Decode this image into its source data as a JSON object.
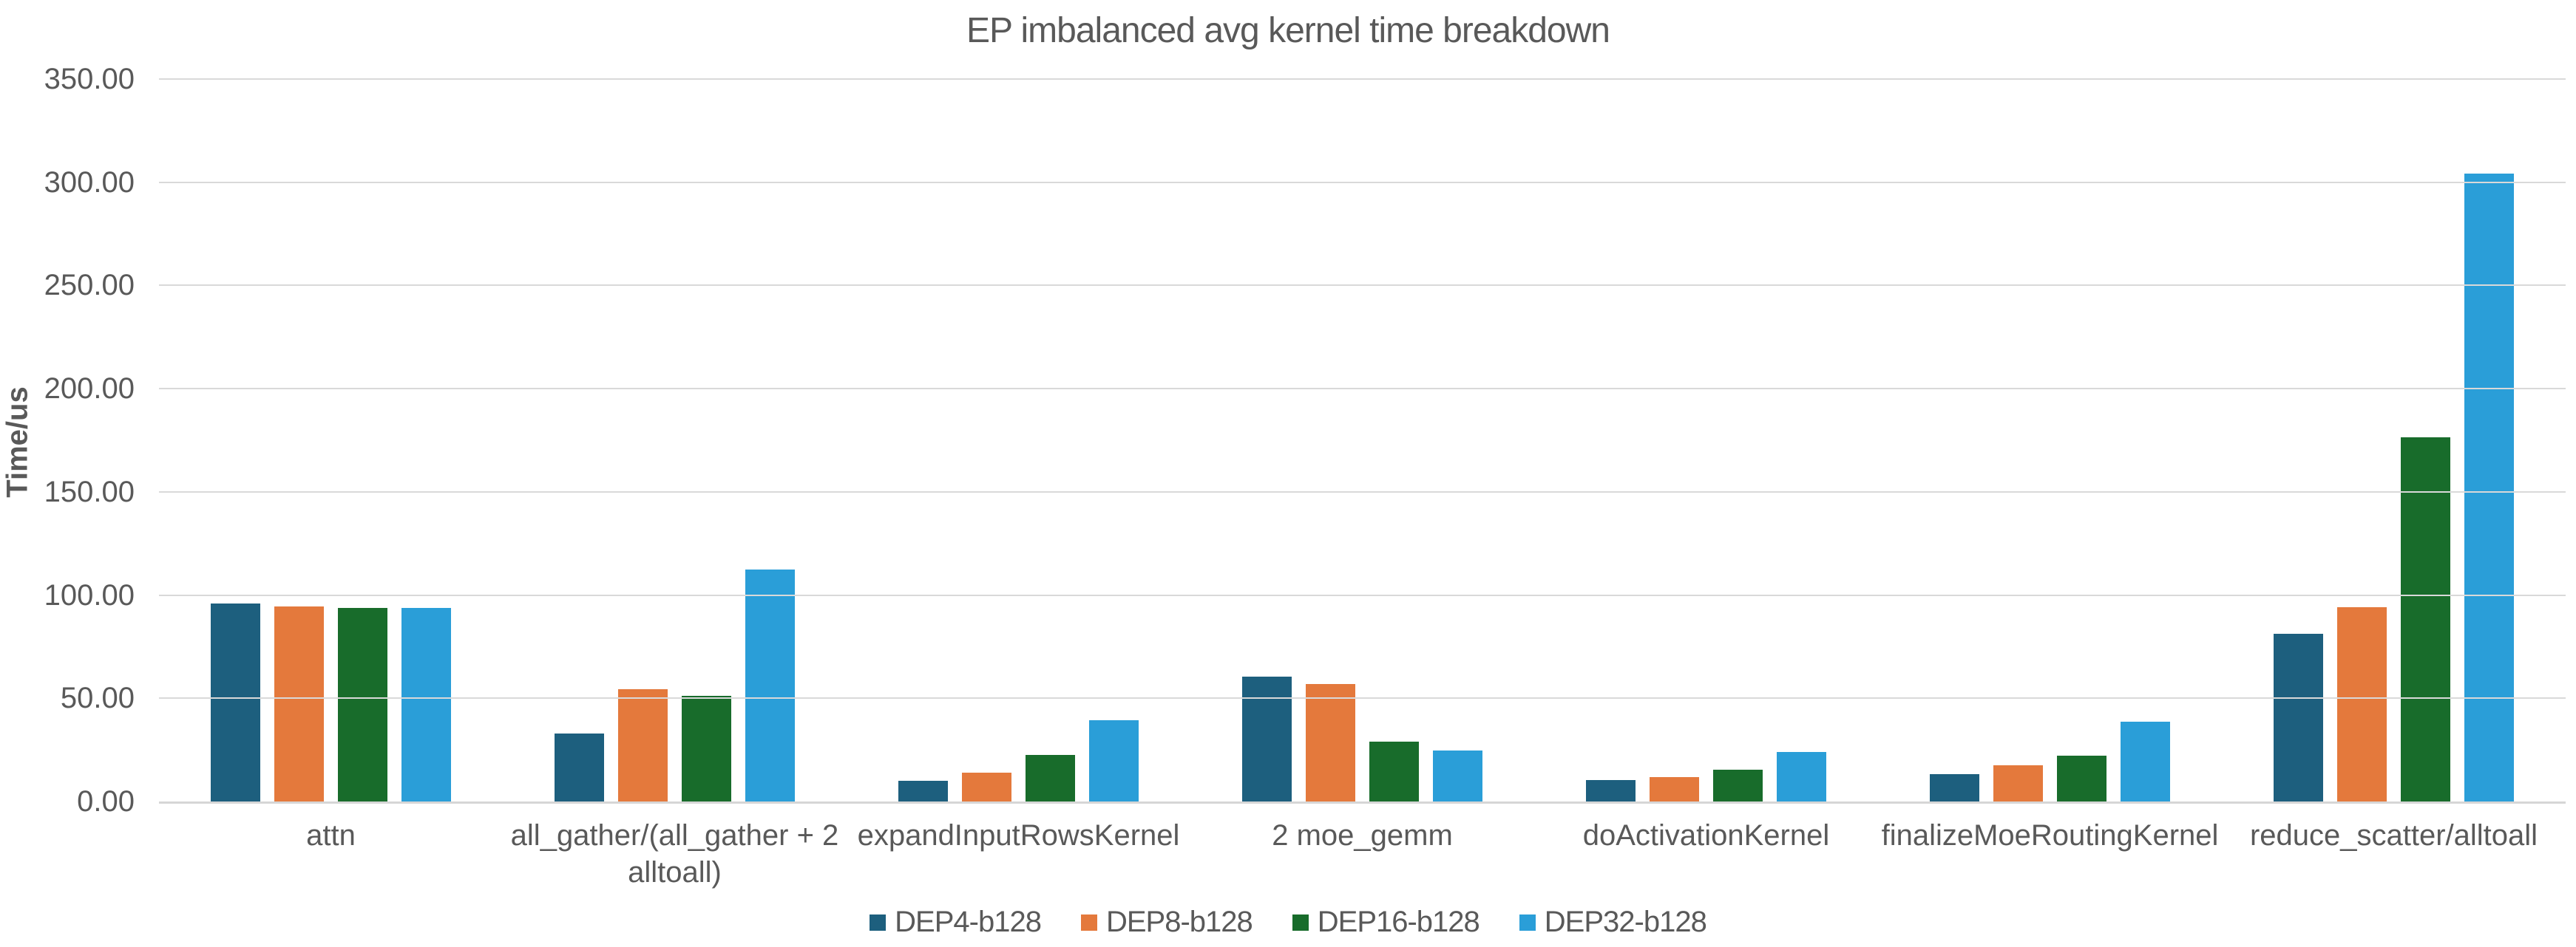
{
  "title": "EP imbalanced avg kernel time breakdown",
  "chart_data": {
    "type": "bar",
    "title": "EP imbalanced avg kernel time breakdown",
    "xlabel": "",
    "ylabel": "Time/us",
    "ylim": [
      0,
      350
    ],
    "grid": true,
    "legend_position": "bottom",
    "y_ticks": [
      {
        "value": 0,
        "label": "0.00"
      },
      {
        "value": 50,
        "label": "50.00"
      },
      {
        "value": 100,
        "label": "100.00"
      },
      {
        "value": 150,
        "label": "150.00"
      },
      {
        "value": 200,
        "label": "200.00"
      },
      {
        "value": 250,
        "label": "250.00"
      },
      {
        "value": 300,
        "label": "300.00"
      },
      {
        "value": 350,
        "label": "350.00"
      }
    ],
    "categories": [
      [
        "attn"
      ],
      [
        "all_gather/(all_gather + 2",
        "alltoall)"
      ],
      [
        "expandInputRowsKernel"
      ],
      [
        "2 moe_gemm"
      ],
      [
        "doActivationKernel"
      ],
      [
        "finalizeMoeRoutingKernel"
      ],
      [
        "reduce_scatter/alltoall"
      ]
    ],
    "series": [
      {
        "name": "DEP4-b128",
        "color": "#1D5F7E",
        "values": [
          95.8,
          32.8,
          9.9,
          60.4,
          10.5,
          13.4,
          81.2
        ]
      },
      {
        "name": "DEP8-b128",
        "color": "#E4793C",
        "values": [
          94.4,
          54.5,
          13.9,
          56.8,
          11.9,
          17.5,
          94.0
        ]
      },
      {
        "name": "DEP16-b128",
        "color": "#186C2B",
        "values": [
          93.7,
          51.0,
          22.5,
          28.9,
          15.4,
          22.2,
          176.6
        ]
      },
      {
        "name": "DEP32-b128",
        "color": "#2A9ED8",
        "values": [
          93.6,
          112.3,
          39.5,
          24.6,
          23.9,
          38.6,
          304.3
        ]
      }
    ]
  }
}
